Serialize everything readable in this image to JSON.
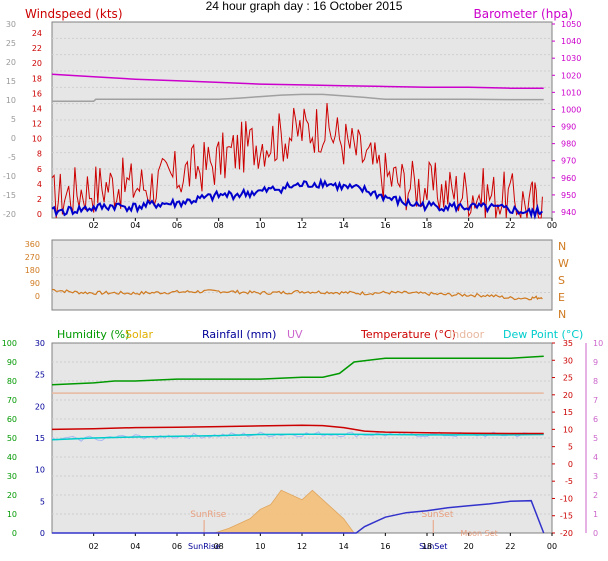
{
  "title": "24 hour graph day : 16 October 2015",
  "colors": {
    "windspeed": "#cc0000",
    "barometer": "#cc00cc",
    "gust_avg": "#0000cc",
    "grey_line": "#a0a0a0",
    "direction": "#d07a20",
    "humidity": "#009900",
    "solar": "#e0b000",
    "rainfall": "#000099",
    "uv": "#cc66cc",
    "temperature": "#cc0000",
    "indoor": "#e8b8a0",
    "dewpoint": "#00cccc",
    "panel_bg": "#e6e6e6",
    "axis_left": "#999999"
  },
  "chart_data": [
    {
      "type": "line",
      "panel": "wind-barometer",
      "x_ticks": [
        "02",
        "04",
        "06",
        "08",
        "10",
        "12",
        "14",
        "16",
        "18",
        "20",
        "22",
        "00"
      ],
      "left_labels": [
        {
          "text": "Windspeed (kts)",
          "color": "#cc0000",
          "ticks": [
            "24",
            "22",
            "20",
            "18",
            "16",
            "14",
            "12",
            "10",
            "8",
            "6",
            "4",
            "2",
            "0"
          ]
        },
        {
          "text": "",
          "color": "#999999",
          "ticks": [
            "30",
            "25",
            "20",
            "15",
            "10",
            "5",
            "0",
            "-5",
            "-10",
            "-15",
            "-20"
          ]
        }
      ],
      "right_label": {
        "text": "Barometer (hpa)",
        "color": "#cc00cc",
        "ticks": [
          "1050",
          "1040",
          "1030",
          "1020",
          "1010",
          "1000",
          "990",
          "980",
          "970",
          "960",
          "950",
          "940"
        ]
      },
      "series": [
        {
          "key": "barometer",
          "hours": [
            0,
            2,
            4,
            6,
            8,
            10,
            12,
            14,
            16,
            18,
            20,
            22,
            23.6
          ],
          "values": [
            1023,
            1021.5,
            1020,
            1019,
            1018,
            1017,
            1016.5,
            1016,
            1015.5,
            1015,
            1015,
            1014.5,
            1014.5
          ]
        },
        {
          "key": "grey_line",
          "hours": [
            0,
            2,
            2.1,
            6,
            8,
            9,
            10,
            11,
            12,
            13,
            14,
            15,
            16,
            18,
            20,
            22,
            23.6
          ],
          "values": [
            10,
            10,
            10.5,
            10.5,
            10.5,
            10.8,
            11.2,
            11.6,
            11.8,
            11.8,
            11.4,
            11,
            10.5,
            10.5,
            10.5,
            10.4,
            10.4
          ]
        },
        {
          "key": "windspeed_avg",
          "hours": [
            0,
            1,
            2,
            3,
            4,
            5,
            6,
            7,
            8,
            9,
            10,
            11,
            12,
            13,
            14,
            15,
            16,
            17,
            18,
            19,
            20,
            21,
            22,
            23,
            23.6
          ],
          "values": [
            0.8,
            1,
            1.3,
            1.6,
            1.4,
            1.8,
            1.9,
            2.4,
            2.9,
            3.1,
            3.4,
            3.9,
            4.3,
            4.6,
            4.0,
            3.6,
            2.7,
            1.9,
            1.6,
            1.5,
            1.4,
            1.3,
            1.1,
            0.6,
            1.0
          ]
        },
        {
          "key": "windspeed_gust",
          "hours": [
            0,
            1,
            2,
            3,
            4,
            5,
            6,
            7,
            8,
            9,
            10,
            11,
            12,
            13,
            14,
            15,
            16,
            17,
            18,
            19,
            20,
            21,
            22,
            23,
            23.6
          ],
          "values": [
            2.5,
            3.5,
            4.0,
            4.5,
            4.2,
            4.5,
            5.5,
            6.5,
            7.5,
            9.0,
            10.0,
            10.5,
            11.5,
            12.0,
            10.0,
            8.0,
            5.5,
            4.5,
            4.0,
            3.5,
            3.5,
            3.0,
            2.5,
            2.0,
            1.5
          ]
        }
      ]
    },
    {
      "type": "line",
      "panel": "wind-direction",
      "left_ticks": [
        "360",
        "270",
        "180",
        "90",
        "0"
      ],
      "right_ticks": [
        "N",
        "W",
        "S",
        "E",
        "N"
      ],
      "series": [
        {
          "key": "direction",
          "hours": [
            0,
            1,
            2,
            3,
            4,
            5,
            6,
            7,
            8,
            9,
            10,
            11,
            12,
            13,
            14,
            15,
            16,
            17,
            18,
            19,
            20,
            21,
            22,
            23,
            23.6
          ],
          "values": [
            90,
            75,
            70,
            70,
            68,
            72,
            75,
            78,
            80,
            75,
            70,
            72,
            78,
            75,
            72,
            68,
            72,
            70,
            65,
            60,
            58,
            55,
            40,
            40,
            45
          ]
        }
      ]
    },
    {
      "type": "line",
      "panel": "temperature-humidity",
      "x_ticks": [
        "02",
        "04",
        "06",
        "SunRise",
        "08",
        "10",
        "12",
        "14",
        "16",
        "SunSet",
        "18",
        "20",
        "22",
        "00"
      ],
      "legend": [
        {
          "text": "Humidity (%)",
          "key": "humidity"
        },
        {
          "text": "Solar",
          "key": "solar"
        },
        {
          "text": "Rainfall (mm)",
          "key": "rainfall"
        },
        {
          "text": "UV",
          "key": "uv"
        },
        {
          "text": "Temperature (°C)",
          "key": "temperature"
        },
        {
          "text": "Indoor",
          "key": "indoor"
        },
        {
          "text": "Dew Point (°C)",
          "key": "dewpoint"
        }
      ],
      "annotations": [
        "SunRise",
        "SunSet",
        "Moon Set"
      ],
      "axes": {
        "humidity": [
          "100",
          "90",
          "80",
          "70",
          "60",
          "50",
          "40",
          "30",
          "20",
          "10",
          "0"
        ],
        "rainfall": [
          "30",
          "25",
          "20",
          "15",
          "10",
          "5",
          "0"
        ],
        "temperature": [
          "35",
          "30",
          "25",
          "20",
          "15",
          "10",
          "5",
          "0",
          "-5",
          "-10",
          "-15",
          "-20"
        ],
        "uv": [
          "10",
          "9",
          "8",
          "7",
          "6",
          "5",
          "4",
          "3",
          "2",
          "1",
          "0"
        ]
      },
      "series": [
        {
          "key": "humidity",
          "hours": [
            0,
            2,
            3,
            4,
            6,
            8,
            10,
            12,
            13,
            13.8,
            14.5,
            16,
            18,
            20,
            22,
            23.6
          ],
          "values": [
            78,
            79,
            80,
            80,
            81,
            81,
            81,
            82,
            82,
            84,
            90,
            92,
            92,
            92,
            92,
            93
          ]
        },
        {
          "key": "indoor",
          "hours": [
            0,
            4,
            8,
            12,
            16,
            20,
            23.6
          ],
          "values": [
            20.5,
            20.5,
            20.5,
            20.5,
            20.5,
            20.5,
            20.5
          ]
        },
        {
          "key": "temperature",
          "hours": [
            0,
            2,
            4,
            6,
            8,
            10,
            12,
            13,
            14,
            15,
            16,
            18,
            20,
            22,
            23.6
          ],
          "values": [
            10.0,
            10.2,
            10.5,
            10.6,
            10.8,
            11,
            11.2,
            11.1,
            10.5,
            9.5,
            9.2,
            9.0,
            8.9,
            8.8,
            8.8
          ]
        },
        {
          "key": "dewpoint",
          "hours": [
            0,
            2,
            4,
            6,
            8,
            10,
            12,
            14,
            16,
            18,
            20,
            22,
            23.6
          ],
          "values": [
            7.0,
            7.5,
            7.8,
            8.0,
            8.2,
            8.5,
            8.6,
            8.6,
            8.5,
            8.4,
            8.4,
            8.4,
            8.5
          ]
        },
        {
          "key": "rainfall",
          "hours": [
            0,
            14.6,
            15,
            16,
            17,
            18,
            19,
            20,
            21,
            22,
            23,
            23.6
          ],
          "values": [
            0,
            0,
            1,
            2.5,
            3.2,
            3.5,
            4,
            4.3,
            4.6,
            5,
            5.1,
            0
          ]
        },
        {
          "key": "solar",
          "hours": [
            7.8,
            8.5,
            9,
            9.5,
            10,
            10.5,
            11,
            11.5,
            12,
            12.5,
            13,
            13.5,
            14,
            14.5
          ],
          "values": [
            0,
            1,
            2,
            3,
            5,
            6,
            9,
            8,
            7,
            9,
            7,
            5,
            3,
            0
          ]
        }
      ]
    }
  ]
}
